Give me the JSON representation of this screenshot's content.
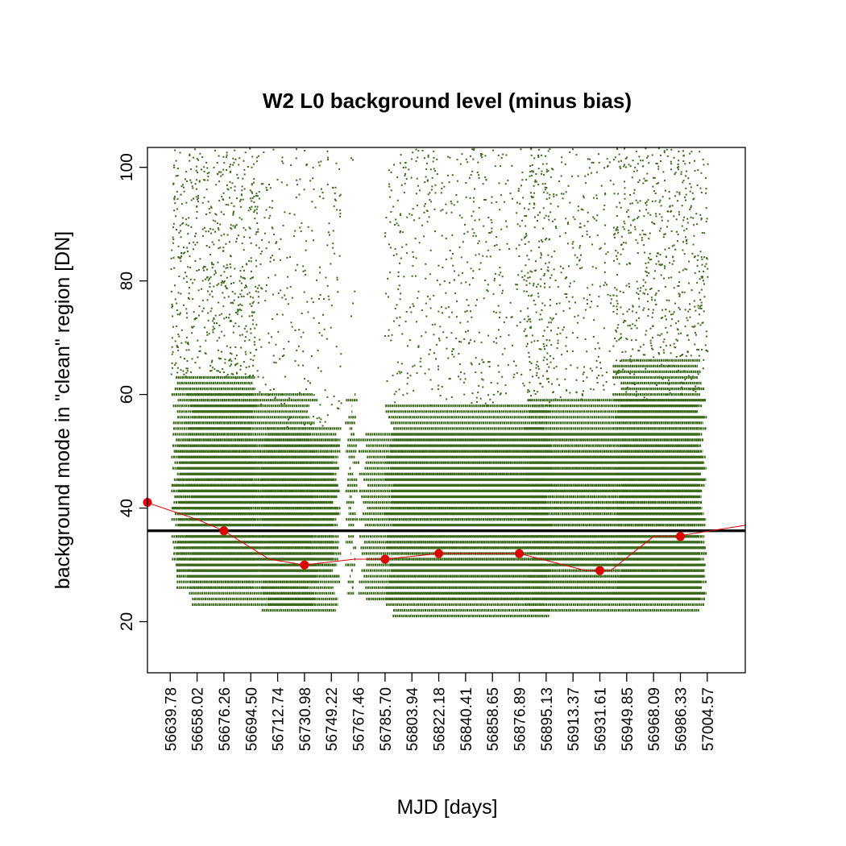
{
  "chart_data": {
    "type": "scatter",
    "title": "W2 L0 background level (minus bias)",
    "xlabel": "MJD [days]",
    "ylabel": "background mode in \"clean\" region [DN]",
    "xlim": [
      56624.3,
      57030.4
    ],
    "ylim": [
      11,
      103.5
    ],
    "x_ticks": [
      "56639.78",
      "56658.02",
      "56676.26",
      "56694.50",
      "56712.74",
      "56730.98",
      "56749.22",
      "56767.46",
      "56785.70",
      "56803.94",
      "56822.18",
      "56840.41",
      "56858.65",
      "56876.89",
      "56895.13",
      "56913.37",
      "56931.61",
      "56949.85",
      "56968.09",
      "56986.33",
      "57004.57"
    ],
    "y_ticks": [
      20,
      40,
      60,
      80,
      100
    ],
    "grid": false,
    "scatter_color": "#3b6a1a",
    "scatter_ranges": [
      {
        "x_range": [
          56639.78,
          56756.0
        ],
        "y_range": [
          22,
          65
        ],
        "note": "dense band"
      },
      {
        "x_range": [
          56762.0,
          56765.0
        ],
        "y_range": [
          25,
          60
        ]
      },
      {
        "x_range": [
          56767.46,
          57004.57
        ],
        "y_range": [
          20,
          66
        ]
      }
    ],
    "reference_line": {
      "y": 36,
      "color": "#000000"
    },
    "series": [
      {
        "color": "#dd0000",
        "type": "line+points",
        "x": [
          56623.5,
          56658.0,
          56676.26,
          56707.0,
          56730.98,
          56765.0,
          56785.7,
          56822.18,
          56840.41,
          56876.89,
          56922.0,
          56939.0,
          56968.09,
          56983.0,
          57031.0
        ],
        "y": [
          41,
          38,
          36,
          31,
          30,
          31,
          31,
          32,
          32,
          32,
          29,
          29,
          35,
          35,
          37
        ],
        "points_x": [
          56624.3,
          56676.26,
          56730.98,
          56785.7,
          56822.18,
          56876.89,
          56931.61,
          56986.33
        ],
        "points_y": [
          41,
          36,
          30,
          31,
          32,
          32,
          29,
          35
        ]
      }
    ]
  }
}
